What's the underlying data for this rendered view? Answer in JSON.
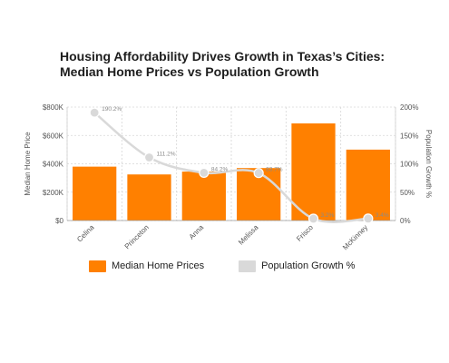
{
  "title": {
    "line1": "Housing Affordability Drives Growth in Texas’s Cities:",
    "line2": "Median Home Prices vs Population Growth"
  },
  "colors": {
    "bar": "#ff8000",
    "line": "#d9d9d9",
    "grid": "#d6d6d6",
    "axis_text": "#555555"
  },
  "chart_data": {
    "type": "bar",
    "categories": [
      "Celina",
      "Princeton",
      "Anna",
      "Melissa",
      "Frisco",
      "McKinney"
    ],
    "series": [
      {
        "name": "Median Home Prices",
        "type": "bar",
        "axis": "left",
        "values": [
          380000,
          325000,
          345000,
          370000,
          685000,
          500000
        ]
      },
      {
        "name": "Population Growth %",
        "type": "line",
        "axis": "right",
        "values": [
          190.2,
          111.2,
          84.2,
          83.7,
          3.2,
          3.4
        ],
        "labels": [
          "190.2%",
          "111.2%",
          "84.2%",
          "83.7%",
          "3.2%",
          "3.4%"
        ]
      }
    ],
    "y_left": {
      "label": "Median Home Price",
      "ylim": [
        0,
        800000
      ],
      "ticks": [
        0,
        200000,
        400000,
        600000,
        800000
      ],
      "tick_labels": [
        "$0",
        "$200K",
        "$400K",
        "$600K",
        "$800K"
      ]
    },
    "y_right": {
      "label": "Population Growth %",
      "ylim": [
        0,
        200
      ],
      "ticks": [
        0,
        50,
        100,
        150,
        200
      ],
      "tick_labels": [
        "0%",
        "50%",
        "100%",
        "150%",
        "200%"
      ]
    },
    "grid": true,
    "legend_position": "bottom-left"
  }
}
